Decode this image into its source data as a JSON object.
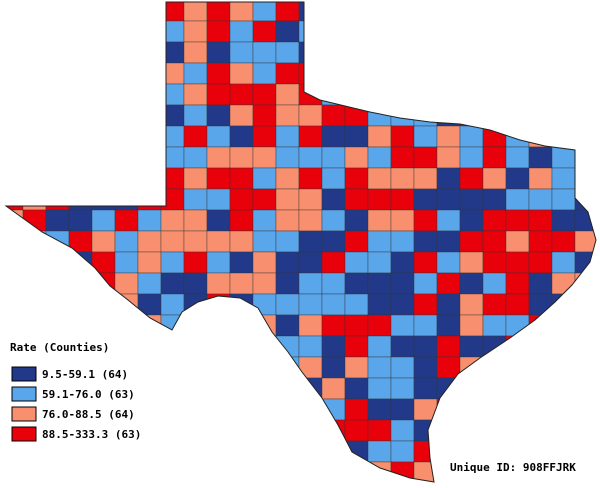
{
  "legend": {
    "title": "Rate (Counties)",
    "items": [
      {
        "label": "9.5-59.1 (64)",
        "color": "#22398a"
      },
      {
        "label": "59.1-76.0 (63)",
        "color": "#5aa6ea"
      },
      {
        "label": "76.0-88.5 (64)",
        "color": "#f8906f"
      },
      {
        "label": "88.5-333.3 (63)",
        "color": "#e8000b"
      }
    ]
  },
  "footer": {
    "unique_id": "Unique ID: 908FFJRK"
  }
}
